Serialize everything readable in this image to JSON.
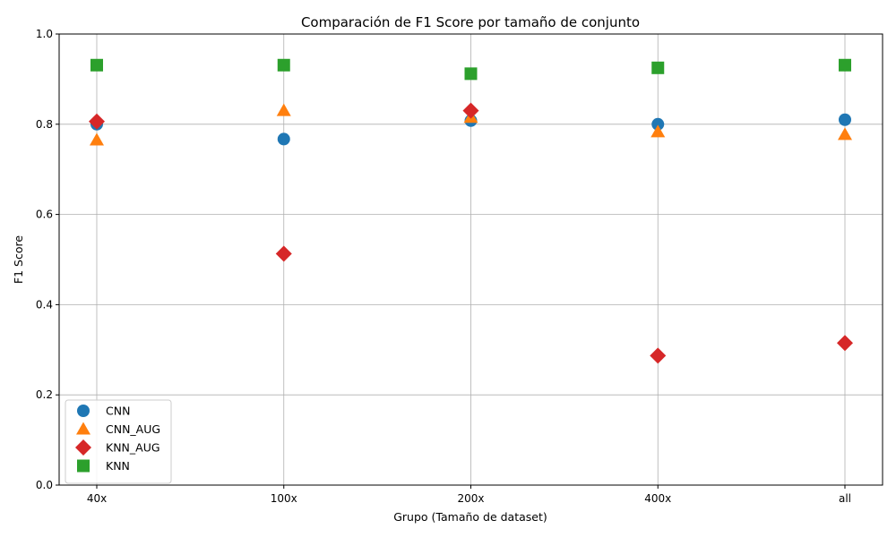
{
  "chart_data": {
    "type": "scatter",
    "title": "Comparación de F1 Score por tamaño de conjunto",
    "xlabel": "Grupo (Tamaño de dataset)",
    "ylabel": "F1 Score",
    "categories": [
      "40x",
      "100x",
      "200x",
      "400x",
      "all"
    ],
    "ylim": [
      0,
      1
    ],
    "yticks": [
      "0.0",
      "0.2",
      "0.4",
      "0.6",
      "0.8",
      "1.0"
    ],
    "grid": true,
    "legend_position": "lower-left",
    "series": [
      {
        "name": "CNN",
        "marker": "circle",
        "color": "#1f77b4",
        "values": [
          0.8,
          0.767,
          0.808,
          0.8,
          0.81
        ]
      },
      {
        "name": "CNN_AUG",
        "marker": "triangle",
        "color": "#ff7f0e",
        "values": [
          0.765,
          0.83,
          0.815,
          0.783,
          0.777
        ]
      },
      {
        "name": "KNN_AUG",
        "marker": "diamond",
        "color": "#d62728",
        "values": [
          0.806,
          0.513,
          0.83,
          0.287,
          0.315
        ]
      },
      {
        "name": "KNN",
        "marker": "square",
        "color": "#2ca02c",
        "values": [
          0.931,
          0.931,
          0.912,
          0.925,
          0.931
        ]
      }
    ]
  }
}
